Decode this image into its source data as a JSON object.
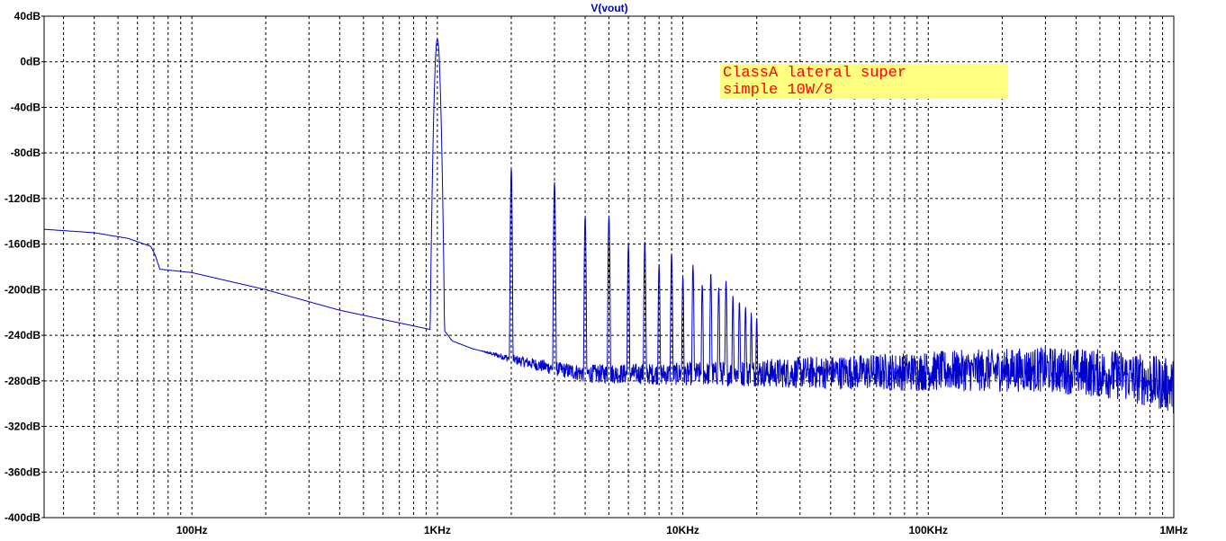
{
  "colors": {
    "trace": "#0000cc",
    "title": "#0000cc",
    "grid": "#000000",
    "note_bg": "#ffff80",
    "note_text": "#ff0000"
  },
  "annotation": {
    "line1": "ClassA lateral super",
    "line2": "simple 10W/8"
  },
  "chart_data": {
    "type": "line",
    "title": "V(vout)",
    "xlabel": "",
    "ylabel": "",
    "x_scale": "log",
    "xlim": [
      25,
      1000000
    ],
    "ylim": [
      -400,
      40
    ],
    "grid": true,
    "x_tick_labels": [
      {
        "value": 100,
        "label": "100Hz"
      },
      {
        "value": 1000,
        "label": "1KHz"
      },
      {
        "value": 10000,
        "label": "10KHz"
      },
      {
        "value": 100000,
        "label": "100KHz"
      },
      {
        "value": 1000000,
        "label": "1MHz"
      }
    ],
    "y_tick_labels": [
      {
        "value": 40,
        "label": "40dB"
      },
      {
        "value": 0,
        "label": "0dB"
      },
      {
        "value": -40,
        "label": "-40dB"
      },
      {
        "value": -80,
        "label": "-80dB"
      },
      {
        "value": -120,
        "label": "-120dB"
      },
      {
        "value": -160,
        "label": "-160dB"
      },
      {
        "value": -200,
        "label": "-200dB"
      },
      {
        "value": -240,
        "label": "-240dB"
      },
      {
        "value": -280,
        "label": "-280dB"
      },
      {
        "value": -320,
        "label": "-320dB"
      },
      {
        "value": -360,
        "label": "-360dB"
      },
      {
        "value": -400,
        "label": "-400dB"
      }
    ],
    "series": [
      {
        "base_curve": [
          [
            25,
            -147
          ],
          [
            40,
            -150
          ],
          [
            55,
            -155
          ],
          [
            68,
            -162
          ],
          [
            71,
            -170
          ],
          [
            74,
            -182
          ],
          [
            100,
            -185
          ],
          [
            200,
            -200
          ],
          [
            400,
            -218
          ],
          [
            940,
            -235
          ],
          [
            1060,
            -235
          ],
          [
            1150,
            -245
          ],
          [
            1400,
            -252
          ],
          [
            2000,
            -260
          ],
          [
            3000,
            -268
          ],
          [
            4000,
            -272
          ],
          [
            10000,
            -272
          ],
          [
            30000,
            -270
          ],
          [
            100000,
            -268
          ],
          [
            300000,
            -266
          ],
          [
            600000,
            -270
          ],
          [
            1000000,
            -280
          ]
        ],
        "noise_band_db": [
          [
            25,
            0
          ],
          [
            1500,
            0
          ],
          [
            2000,
            8
          ],
          [
            4000,
            16
          ],
          [
            15000,
            22
          ],
          [
            30000,
            28
          ],
          [
            100000,
            35
          ],
          [
            300000,
            40
          ],
          [
            1000000,
            48
          ]
        ],
        "harmonics": [
          {
            "f": 1000,
            "db": 20
          },
          {
            "f": 2000,
            "db": -93
          },
          {
            "f": 3000,
            "db": -105
          },
          {
            "f": 4000,
            "db": -135
          },
          {
            "f": 5000,
            "db": -135
          },
          {
            "f": 6000,
            "db": -160
          },
          {
            "f": 7000,
            "db": -157
          },
          {
            "f": 8000,
            "db": -178
          },
          {
            "f": 9000,
            "db": -168
          },
          {
            "f": 10000,
            "db": -188
          },
          {
            "f": 11000,
            "db": -178
          },
          {
            "f": 12000,
            "db": -195
          },
          {
            "f": 13000,
            "db": -185
          },
          {
            "f": 14000,
            "db": -198
          },
          {
            "f": 15000,
            "db": -192
          },
          {
            "f": 16000,
            "db": -205
          },
          {
            "f": 17000,
            "db": -210
          },
          {
            "f": 18000,
            "db": -215
          },
          {
            "f": 19000,
            "db": -220
          },
          {
            "f": 20000,
            "db": -225
          }
        ]
      }
    ]
  }
}
